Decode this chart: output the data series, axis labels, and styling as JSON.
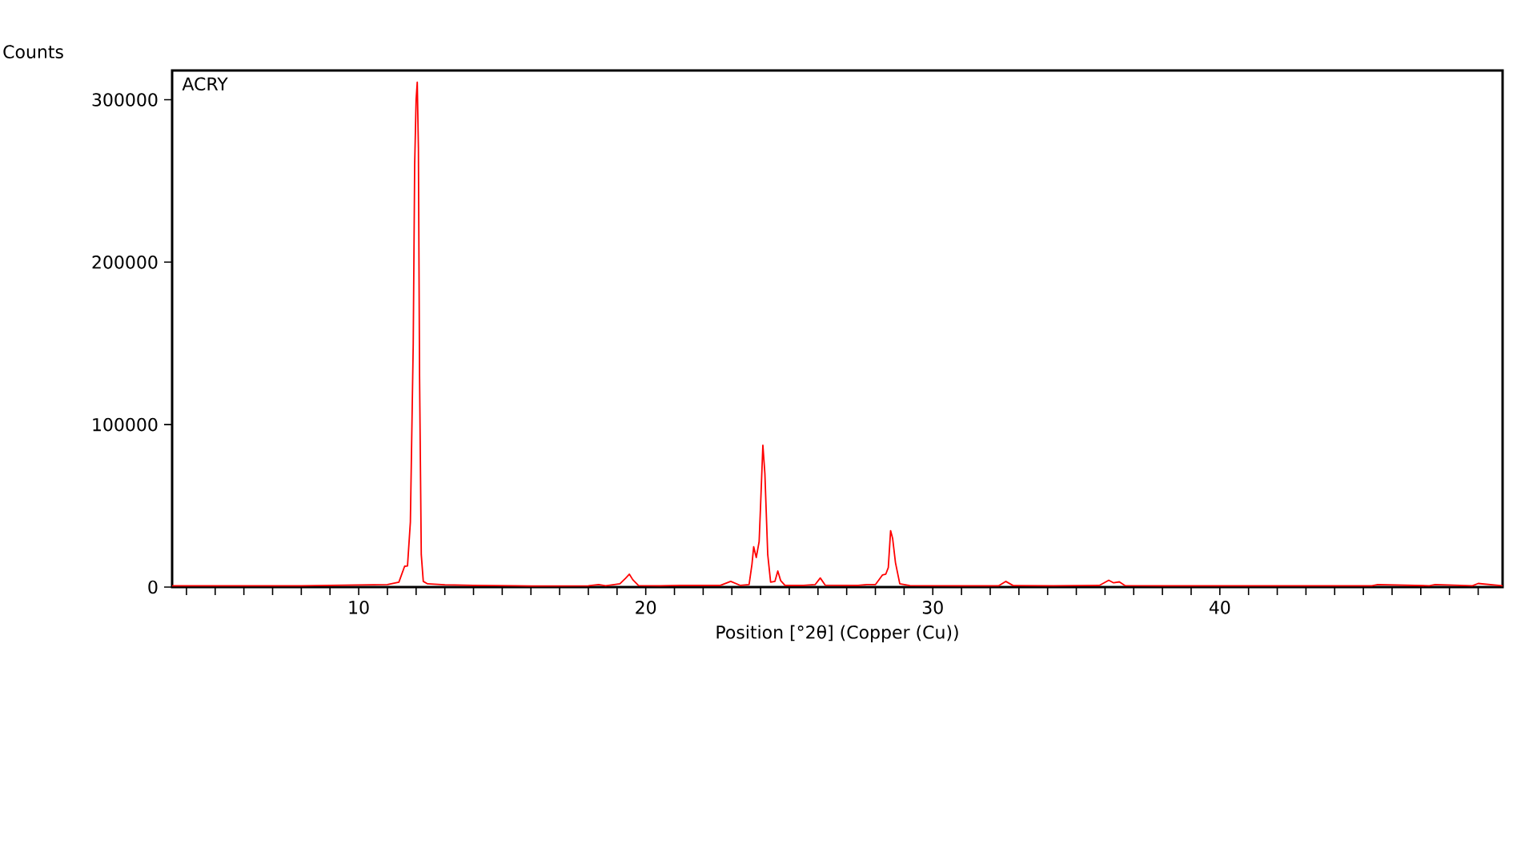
{
  "chart_data": {
    "type": "line",
    "xlabel": "Position [°2θ] (Copper (Cu))",
    "ylabel": "Counts",
    "annotations": [
      "ACRY"
    ],
    "xlim": [
      3.5,
      49.85
    ],
    "ylim": [
      0,
      318000
    ],
    "xticks": [
      {
        "value": 4,
        "label": null
      },
      {
        "value": 5,
        "label": null
      },
      {
        "value": 6,
        "label": null
      },
      {
        "value": 7,
        "label": null
      },
      {
        "value": 8,
        "label": null
      },
      {
        "value": 9,
        "label": null
      },
      10,
      {
        "value": 11,
        "label": null
      },
      {
        "value": 12,
        "label": null
      },
      {
        "value": 13,
        "label": null
      },
      {
        "value": 14,
        "label": null
      },
      {
        "value": 15,
        "label": null
      },
      {
        "value": 16,
        "label": null
      },
      {
        "value": 17,
        "label": null
      },
      {
        "value": 18,
        "label": null
      },
      {
        "value": 19,
        "label": null
      },
      20,
      {
        "value": 21,
        "label": null
      },
      {
        "value": 22,
        "label": null
      },
      {
        "value": 23,
        "label": null
      },
      {
        "value": 24,
        "label": null
      },
      {
        "value": 25,
        "label": null
      },
      {
        "value": 26,
        "label": null
      },
      {
        "value": 27,
        "label": null
      },
      {
        "value": 28,
        "label": null
      },
      {
        "value": 29,
        "label": null
      },
      30,
      {
        "value": 31,
        "label": null
      },
      {
        "value": 32,
        "label": null
      },
      {
        "value": 33,
        "label": null
      },
      {
        "value": 34,
        "label": null
      },
      {
        "value": 35,
        "label": null
      },
      {
        "value": 36,
        "label": null
      },
      {
        "value": 37,
        "label": null
      },
      {
        "value": 38,
        "label": null
      },
      {
        "value": 39,
        "label": null
      },
      40,
      {
        "value": 41,
        "label": null
      },
      {
        "value": 42,
        "label": null
      },
      {
        "value": 43,
        "label": null
      },
      {
        "value": 44,
        "label": null
      },
      {
        "value": 45,
        "label": null
      },
      {
        "value": 46,
        "label": null
      },
      {
        "value": 47,
        "label": null
      },
      {
        "value": 48,
        "label": null
      },
      {
        "value": 49,
        "label": null
      }
    ],
    "yticks": [
      0,
      100000,
      200000,
      300000
    ],
    "marker": "none",
    "line_style": "solid",
    "series": [
      {
        "color": "#ff0000",
        "x": [
          3.5,
          8.0,
          11.0,
          11.4,
          11.6,
          11.7,
          11.8,
          11.9,
          11.95,
          12.0,
          12.04,
          12.08,
          12.12,
          12.18,
          12.25,
          12.4,
          13.0,
          14.0,
          15.5,
          16.0,
          18.0,
          18.36,
          18.6,
          19.1,
          19.3,
          19.43,
          19.55,
          19.75,
          20.5,
          21.2,
          22.6,
          22.96,
          23.3,
          23.6,
          23.7,
          23.76,
          23.85,
          23.95,
          24.0,
          24.08,
          24.15,
          24.25,
          24.35,
          24.5,
          24.6,
          24.7,
          24.85,
          25.5,
          25.9,
          26.08,
          26.25,
          27.4,
          27.7,
          28.0,
          28.25,
          28.36,
          28.45,
          28.53,
          28.6,
          28.7,
          28.85,
          29.2,
          31.0,
          32.3,
          32.54,
          32.8,
          34.2,
          35.8,
          36.13,
          36.3,
          36.5,
          36.7,
          38.0,
          45.3,
          45.5,
          47.3,
          47.5,
          48.8,
          49.0,
          49.85
        ],
        "values": [
          800,
          800,
          1500,
          3000,
          12800,
          13000,
          40000,
          150000,
          260000,
          300000,
          310800,
          270000,
          130000,
          20000,
          3500,
          2000,
          1400,
          1000,
          800,
          700,
          800,
          1500,
          800,
          2000,
          5500,
          7900,
          4500,
          900,
          800,
          1000,
          1000,
          3500,
          1000,
          1500,
          14000,
          24800,
          18200,
          28000,
          50000,
          87300,
          70000,
          20000,
          3000,
          3500,
          9900,
          4000,
          1000,
          1000,
          1500,
          5600,
          1200,
          1000,
          1500,
          1500,
          7500,
          7900,
          12000,
          34700,
          30000,
          15000,
          2000,
          900,
          800,
          800,
          3500,
          900,
          800,
          1000,
          4200,
          2600,
          3200,
          900,
          800,
          800,
          1500,
          800,
          1500,
          800,
          2200,
          800
        ]
      }
    ]
  }
}
